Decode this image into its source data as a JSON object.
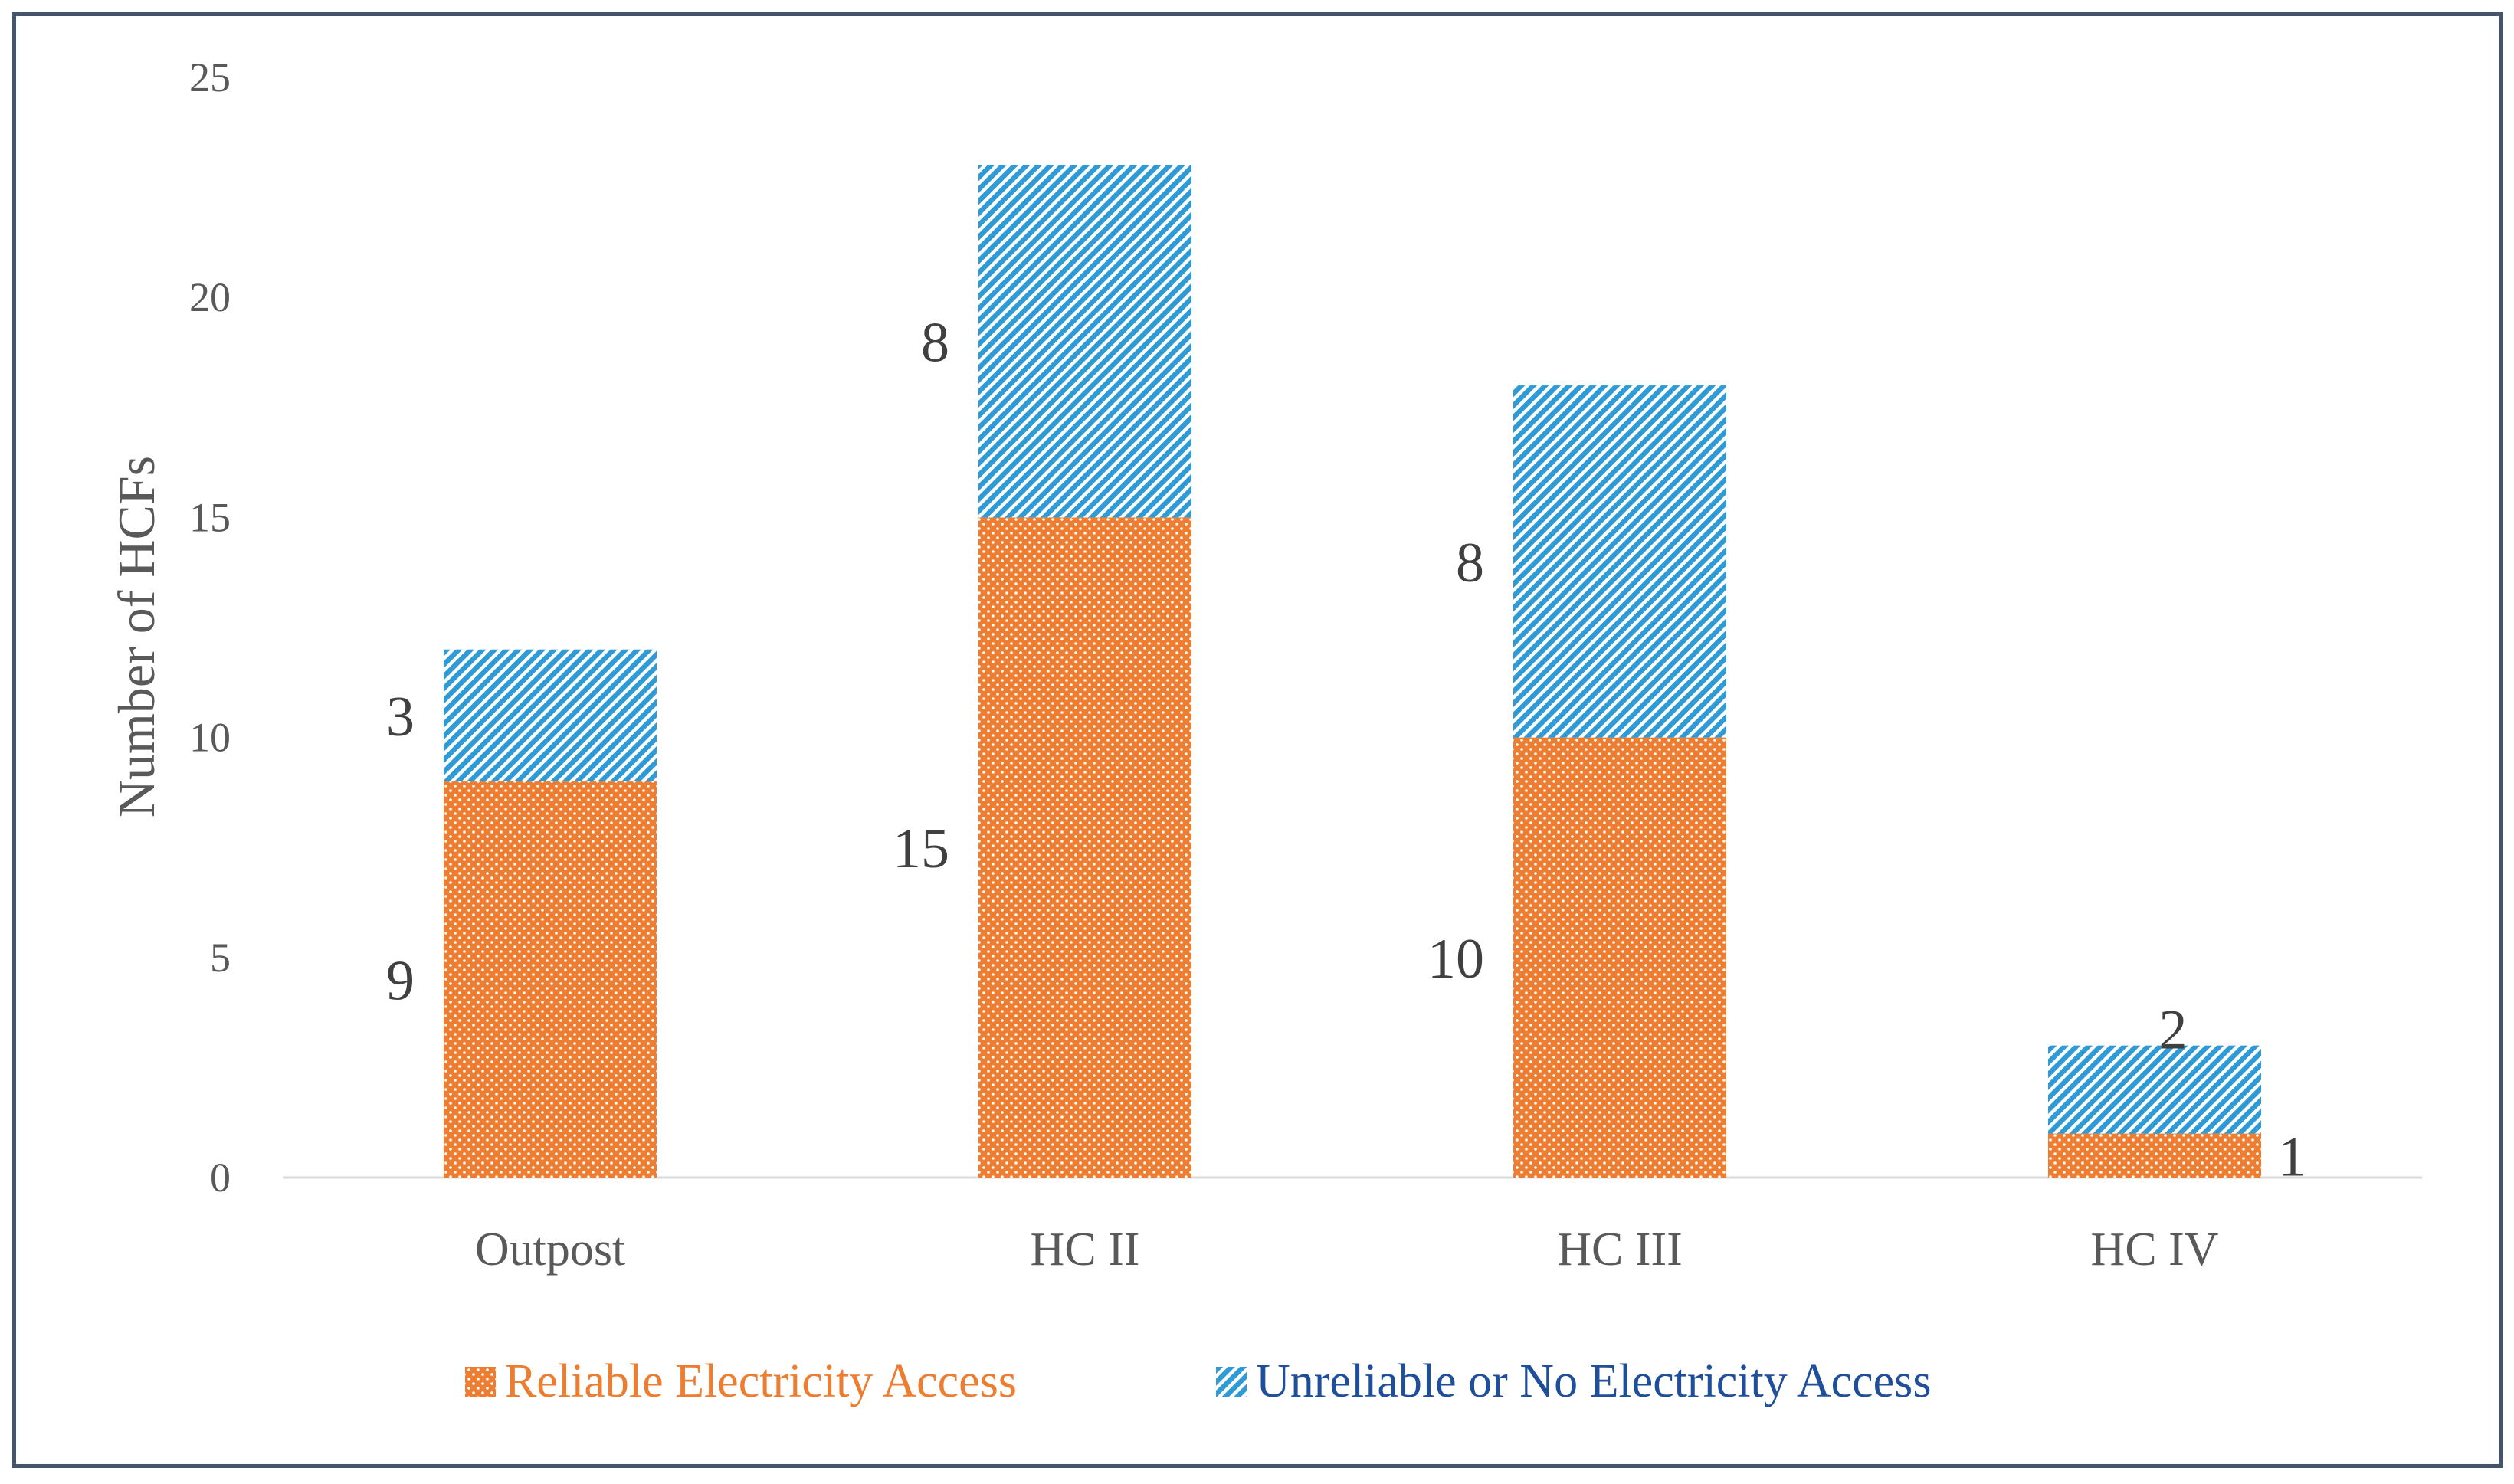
{
  "chart_data": {
    "type": "bar",
    "stacked": true,
    "title": "",
    "xlabel": "",
    "ylabel": "Number of HCFs",
    "ylim": [
      0,
      25
    ],
    "yticks": [
      0,
      5,
      10,
      15,
      20,
      25
    ],
    "grid": false,
    "legend_position": "bottom",
    "categories": [
      "Outpost",
      "HC II",
      "HC III",
      "HC IV"
    ],
    "series": [
      {
        "name": "Reliable Electricity Access",
        "values": [
          9,
          15,
          10,
          1
        ],
        "color": "#ed7d31",
        "pattern": "dots",
        "legend_text_color": "#ed7d31"
      },
      {
        "name": "Unreliable or No Electricity Access",
        "values": [
          3,
          8,
          8,
          2
        ],
        "color": "#2e9ad6",
        "pattern": "diagonal-stripes",
        "legend_text_color": "#1f4e9a"
      }
    ]
  }
}
